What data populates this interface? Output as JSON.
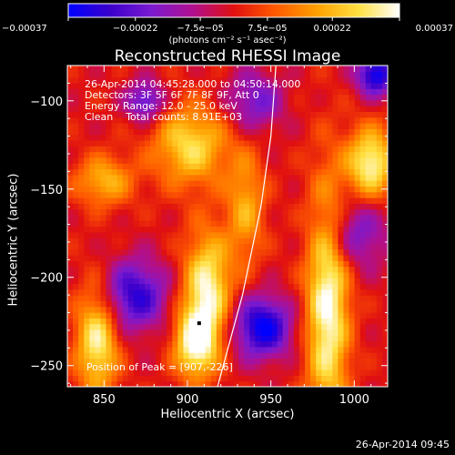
{
  "chart_data": {
    "type": "heatmap",
    "title": "Reconstructed RHESSI Image",
    "xlabel": "Heliocentric X (arcsec)",
    "ylabel": "Heliocentric Y (arcsec)",
    "xlim": [
      828,
      1020
    ],
    "ylim": [
      -262,
      -80
    ],
    "x_ticks": [
      850,
      900,
      950,
      1000
    ],
    "y_ticks": [
      -100,
      -150,
      -200,
      -250
    ],
    "x_tick_labels": [
      "850",
      "900",
      "950",
      "1000"
    ],
    "y_tick_labels": [
      "−100",
      "−150",
      "−200",
      "−250"
    ],
    "colorbar": {
      "min": -0.00037,
      "max": 0.00037,
      "tick_values": [
        -0.00037,
        -0.00022,
        -7.5e-05,
        7.5e-05,
        0.00022,
        0.00037
      ],
      "tick_labels": [
        "−0.00037",
        "−0.00022",
        "−7.5e−05",
        "7.5e−05",
        "0.00022",
        "0.00037"
      ],
      "units_label": "(photons cm⁻² s⁻¹ asec⁻²)",
      "colors": [
        "#0000ff",
        "#3a00cc",
        "#7a1ad0",
        "#b01090",
        "#e01010",
        "#ff5a00",
        "#ffa000",
        "#ffe040",
        "#ffffff"
      ]
    },
    "info": [
      "26-Apr-2014 04:45:28.000 to 04:50:14.000",
      "Detectors: 3F 5F 6F 7F 8F 9F, Att 0",
      "Energy Range: 12.0 - 25.0 keV",
      "Clean    Total counts: 8.91E+03"
    ],
    "peak_label": "Position of Peak = [907,-226]",
    "peak": [
      907,
      -226
    ],
    "limb_curve": [
      [
        918,
        -262
      ],
      [
        933,
        -210
      ],
      [
        944,
        -160
      ],
      [
        950,
        -120
      ],
      [
        953,
        -80
      ]
    ],
    "sources": [
      {
        "x": 984,
        "y": -215,
        "sx": 9,
        "sy": 48,
        "amp": 0.00037
      },
      {
        "x": 912,
        "y": -205,
        "sx": 10,
        "sy": 22,
        "amp": 0.00034
      },
      {
        "x": 905,
        "y": -237,
        "sx": 9,
        "sy": 14,
        "amp": 0.00036
      },
      {
        "x": 846,
        "y": -235,
        "sx": 9,
        "sy": 22,
        "amp": 0.00033
      },
      {
        "x": 1010,
        "y": -135,
        "sx": 10,
        "sy": 14,
        "amp": 0.00035
      },
      {
        "x": 902,
        "y": -125,
        "sx": 16,
        "sy": 16,
        "amp": 0.00028
      },
      {
        "x": 850,
        "y": -145,
        "sx": 12,
        "sy": 10,
        "amp": 0.00022
      },
      {
        "x": 935,
        "y": -160,
        "sx": 8,
        "sy": 22,
        "amp": 0.0002
      },
      {
        "x": 875,
        "y": -100,
        "sx": 8,
        "sy": 8,
        "amp": -0.00025
      },
      {
        "x": 945,
        "y": -228,
        "sx": 12,
        "sy": 12,
        "amp": -0.00037
      },
      {
        "x": 868,
        "y": -210,
        "sx": 14,
        "sy": 14,
        "amp": -0.0003
      },
      {
        "x": 1013,
        "y": -85,
        "sx": 8,
        "sy": 8,
        "amp": -0.00037
      },
      {
        "x": 940,
        "y": -100,
        "sx": 12,
        "sy": 12,
        "amp": -0.0002
      },
      {
        "x": 1000,
        "y": -175,
        "sx": 14,
        "sy": 14,
        "amp": -0.0002
      }
    ]
  },
  "footer_timestamp": "26-Apr-2014 09:45"
}
